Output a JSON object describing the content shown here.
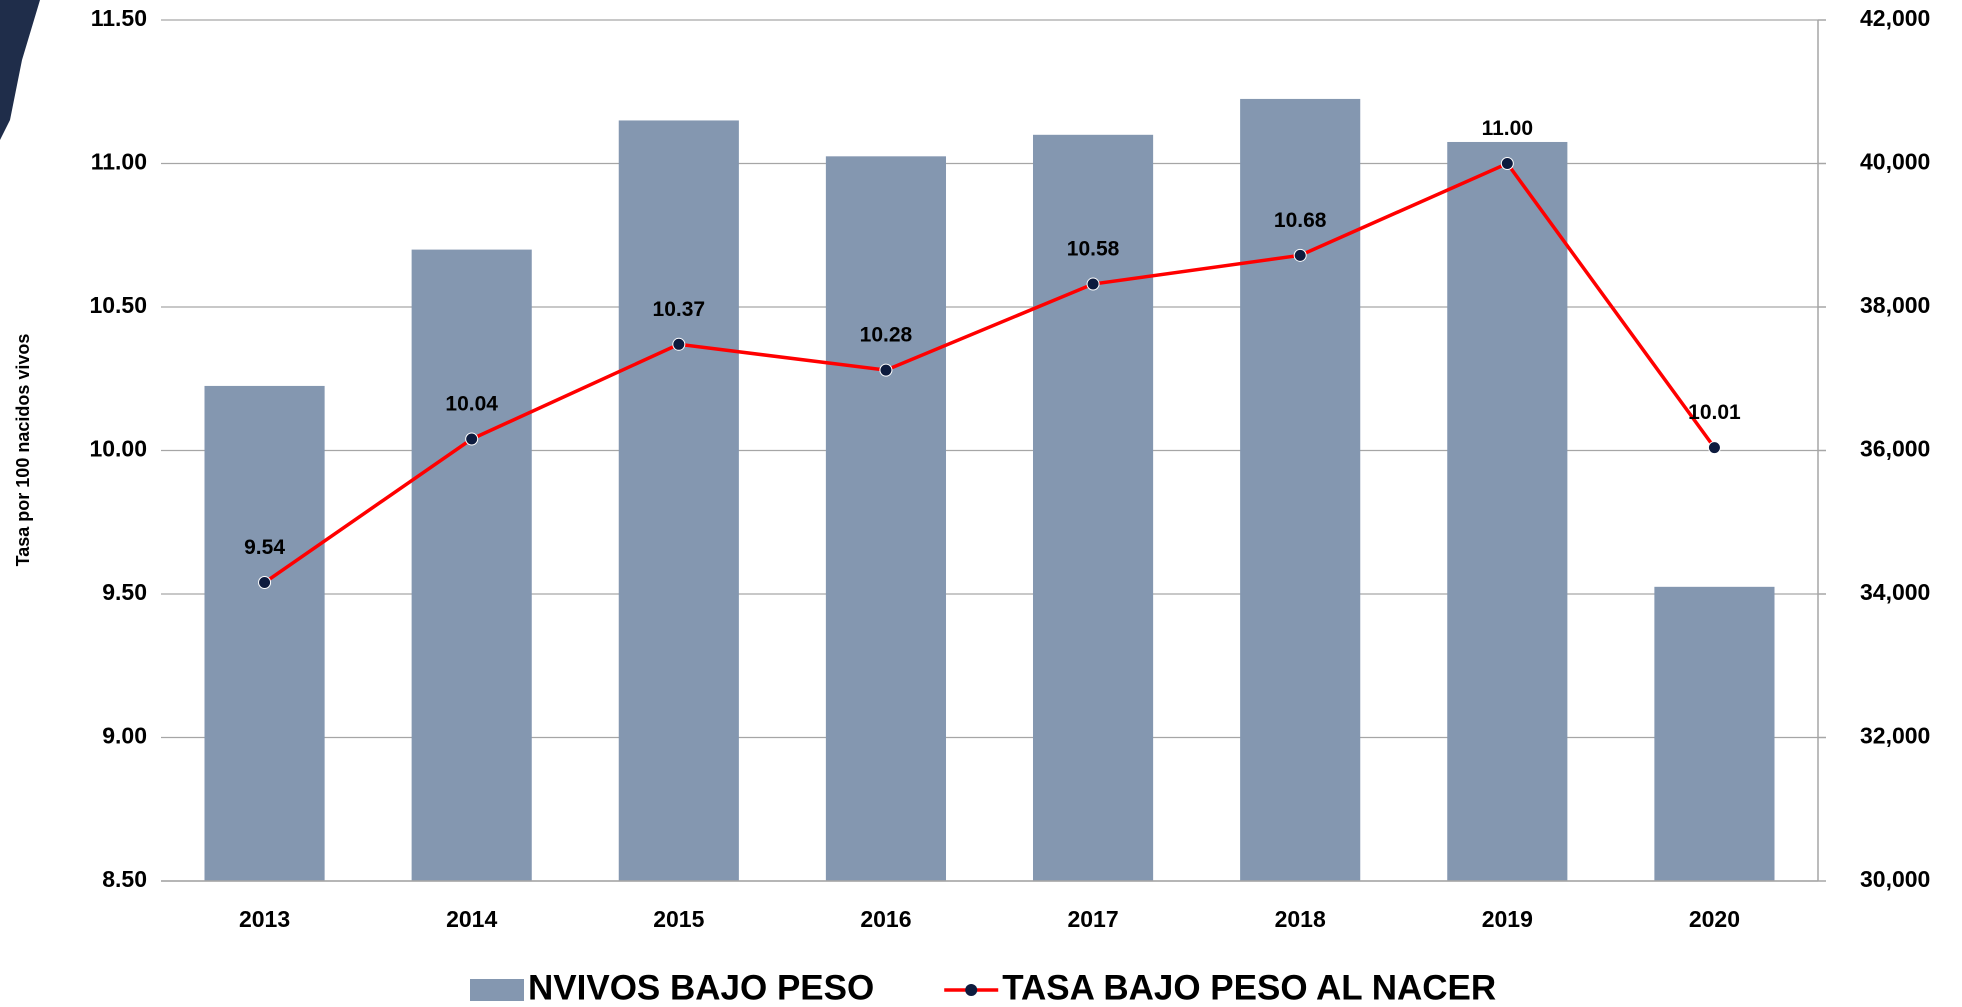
{
  "chart_data": {
    "type": "bar_line",
    "y_label": "Tasa  por 100 nacidos vivos",
    "categories": [
      "2013",
      "2014",
      "2015",
      "2016",
      "2017",
      "2018",
      "2019",
      "2020"
    ],
    "series": [
      {
        "name": "NVIVOS BAJO PESO",
        "type": "bar",
        "axis": "y2",
        "color": "#8497b0",
        "values": [
          36900,
          38800,
          40600,
          40100,
          40400,
          40900,
          40300,
          34100
        ]
      },
      {
        "name": "TASA BAJO PESO AL NACER",
        "type": "line",
        "axis": "y",
        "color": "#ff0000",
        "marker_color": "#0d1b3e",
        "values": [
          9.54,
          10.04,
          10.37,
          10.28,
          10.58,
          10.68,
          11.0,
          10.01
        ],
        "value_labels": [
          "9.54",
          "10.04",
          "10.37",
          "10.28",
          "10.58",
          "10.68",
          "11.00",
          "10.01"
        ]
      }
    ],
    "ylim": [
      8.5,
      11.5
    ],
    "yticks": [
      {
        "value": 8.5,
        "label": "8.50"
      },
      {
        "value": 9,
        "label": "9.00"
      },
      {
        "value": 9.5,
        "label": "9.50"
      },
      {
        "value": 10,
        "label": "10.00"
      },
      {
        "value": 10.5,
        "label": "10.50"
      },
      {
        "value": 11,
        "label": "11.00"
      },
      {
        "value": 11.5,
        "label": "11.50"
      }
    ],
    "y2lim": [
      30000,
      42000
    ],
    "y2ticks": [
      {
        "value": 30000,
        "label": "30,000"
      },
      {
        "value": 32000,
        "label": "32,000"
      },
      {
        "value": 34000,
        "label": "34,000"
      },
      {
        "value": 36000,
        "label": "36,000"
      },
      {
        "value": 38000,
        "label": "38,000"
      },
      {
        "value": 40000,
        "label": "40,000"
      },
      {
        "value": 42000,
        "label": "42,000"
      }
    ],
    "grid": true,
    "legend": "bottom"
  }
}
